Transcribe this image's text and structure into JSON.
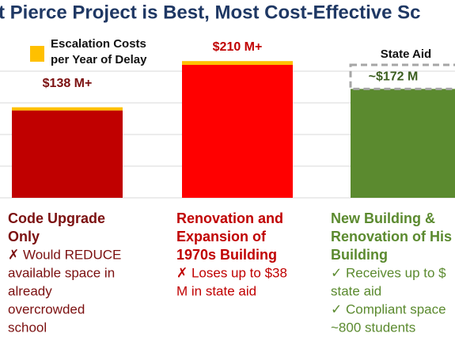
{
  "chart_data": {
    "type": "bar",
    "title": "t Pierce Project is Best, Most Cost-Effective Sc",
    "ylim": [
      0,
      250
    ],
    "yticks": [
      0,
      50,
      100,
      150,
      200
    ],
    "grid": true,
    "values": [
      138,
      210,
      172
    ],
    "value_labels": [
      "$138 M+",
      "$210 M+",
      "~$172 M"
    ],
    "colors": [
      "#c00000",
      "#ff0000",
      "#5b8a2f"
    ],
    "stack": {
      "name": "Escalation Costs per Year of Delay",
      "color": "#ffc000",
      "values": [
        5,
        6,
        null
      ]
    },
    "state_aid": {
      "label": "State Aid",
      "values": [
        null,
        null,
        38
      ]
    },
    "descriptions": [
      {
        "color": "#7b1010",
        "title": [
          "Code Upgrade",
          "Only"
        ],
        "notes": [
          [
            "✗ Would REDUCE",
            "available space in",
            "already",
            "overcrowded",
            "school"
          ]
        ]
      },
      {
        "color": "#c00000",
        "title": [
          "Renovation and",
          "Expansion of",
          "1970s Building"
        ],
        "notes": [
          [
            "✗ Loses up to $38",
            "M in state aid"
          ]
        ]
      },
      {
        "color": "#5b8a2f",
        "title": [
          "New Building &",
          "Renovation of His",
          "Building"
        ],
        "notes": [
          [
            "✓ Receives up to $",
            "state aid"
          ],
          [
            "✓ Compliant space",
            "~800 students"
          ]
        ]
      }
    ]
  }
}
